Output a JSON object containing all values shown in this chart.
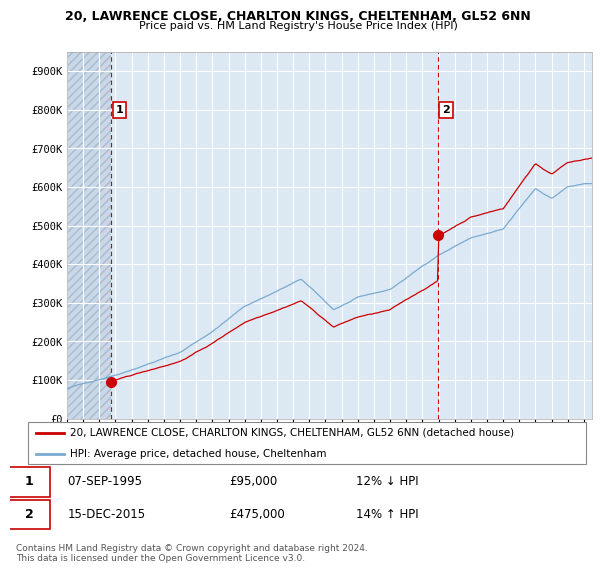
{
  "title_line1": "20, LAWRENCE CLOSE, CHARLTON KINGS, CHELTENHAM, GL52 6NN",
  "title_line2": "Price paid vs. HM Land Registry's House Price Index (HPI)",
  "ylabel_ticks": [
    "£0",
    "£100K",
    "£200K",
    "£300K",
    "£400K",
    "£500K",
    "£600K",
    "£700K",
    "£800K",
    "£900K"
  ],
  "ytick_values": [
    0,
    100000,
    200000,
    300000,
    400000,
    500000,
    600000,
    700000,
    800000,
    900000
  ],
  "ylim": [
    0,
    950000
  ],
  "xlim_start": 1993,
  "xlim_end": 2025.5,
  "sale1_year": 1995.75,
  "sale1_price": 95000,
  "sale1_label": "1",
  "sale1_date": "07-SEP-1995",
  "sale1_pct": "12% ↓ HPI",
  "sale2_year": 2015.96,
  "sale2_price": 475000,
  "sale2_label": "2",
  "sale2_date": "15-DEC-2015",
  "sale2_pct": "14% ↑ HPI",
  "hpi_color": "#7aaad0",
  "sale_color": "#cc0000",
  "dashed_line_color": "#cc0000",
  "bg_color": "#dce9f5",
  "hatch_bg_color": "#c8d8e8",
  "grid_color": "#ffffff",
  "legend_label_sale": "20, LAWRENCE CLOSE, CHARLTON KINGS, CHELTENHAM, GL52 6NN (detached house)",
  "legend_label_hpi": "HPI: Average price, detached house, Cheltenham",
  "footer": "Contains HM Land Registry data © Crown copyright and database right 2024.\nThis data is licensed under the Open Government Licence v3.0."
}
